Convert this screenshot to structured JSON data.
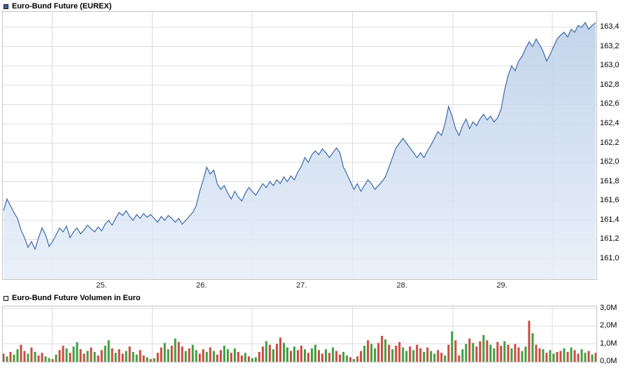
{
  "colors": {
    "price_line": "#3a6aa8",
    "area_top": "#b9cde8",
    "area_bottom": "#e6eef9",
    "grid": "#dcdcdc",
    "plot_border": "#c4c4c4",
    "volume_up": "#3fa03f",
    "volume_down": "#cc4a41",
    "legend_price_swatch": "#3a6aa8",
    "legend_volume_swatch": "#ededed",
    "text": "#000000"
  },
  "chart_data": [
    {
      "type": "area",
      "title": "Euro-Bund Future (EUREX)",
      "legend_position": "top-left",
      "grid": true,
      "x_tick_labels": [
        "25.",
        "26.",
        "27.",
        "28.",
        "29."
      ],
      "day_boundaries": [
        0.083,
        0.252,
        0.42,
        0.589,
        0.758,
        0.926
      ],
      "y_tick_labels": [
        "163,4",
        "163,2",
        "163,0",
        "162,8",
        "162,6",
        "162,4",
        "162,2",
        "162,0",
        "161,8",
        "161,6",
        "161,4",
        "161,2",
        "161,0"
      ],
      "y_tick_values": [
        163.4,
        163.2,
        163.0,
        162.8,
        162.6,
        162.4,
        162.2,
        162.0,
        161.8,
        161.6,
        161.4,
        161.2,
        161.0
      ],
      "y_range": [
        160.79,
        163.56
      ],
      "values": [
        161.5,
        161.62,
        161.55,
        161.48,
        161.42,
        161.3,
        161.22,
        161.12,
        161.18,
        161.1,
        161.22,
        161.32,
        161.25,
        161.13,
        161.18,
        161.25,
        161.32,
        161.28,
        161.34,
        161.22,
        161.28,
        161.32,
        161.26,
        161.3,
        161.35,
        161.31,
        161.28,
        161.33,
        161.29,
        161.36,
        161.4,
        161.35,
        161.42,
        161.48,
        161.45,
        161.5,
        161.44,
        161.4,
        161.46,
        161.42,
        161.47,
        161.43,
        161.46,
        161.42,
        161.38,
        161.44,
        161.4,
        161.45,
        161.42,
        161.38,
        161.42,
        161.36,
        161.4,
        161.44,
        161.48,
        161.55,
        161.7,
        161.82,
        161.95,
        161.88,
        161.92,
        161.78,
        161.72,
        161.76,
        161.68,
        161.62,
        161.7,
        161.64,
        161.6,
        161.68,
        161.74,
        161.7,
        161.66,
        161.72,
        161.78,
        161.74,
        161.8,
        161.76,
        161.82,
        161.78,
        161.85,
        161.8,
        161.86,
        161.82,
        161.9,
        161.96,
        162.05,
        162.0,
        162.08,
        162.12,
        162.08,
        162.14,
        162.1,
        162.05,
        162.1,
        162.15,
        162.1,
        161.95,
        161.88,
        161.8,
        161.72,
        161.78,
        161.7,
        161.76,
        161.82,
        161.78,
        161.72,
        161.76,
        161.8,
        161.85,
        161.95,
        162.05,
        162.15,
        162.2,
        162.25,
        162.2,
        162.15,
        162.1,
        162.05,
        162.1,
        162.05,
        162.12,
        162.18,
        162.25,
        162.32,
        162.28,
        162.4,
        162.58,
        162.48,
        162.35,
        162.28,
        162.38,
        162.45,
        162.35,
        162.42,
        162.38,
        162.45,
        162.5,
        162.44,
        162.48,
        162.42,
        162.46,
        162.55,
        162.75,
        162.9,
        163.0,
        162.95,
        163.05,
        163.1,
        163.18,
        163.25,
        163.2,
        163.28,
        163.22,
        163.15,
        163.05,
        163.12,
        163.2,
        163.28,
        163.32,
        163.35,
        163.3,
        163.38,
        163.35,
        163.42,
        163.4,
        163.45,
        163.38,
        163.42,
        163.45
      ]
    },
    {
      "type": "bar",
      "title": "Euro-Bund Future Volumen in Euro",
      "legend_position": "top-left",
      "grid": true,
      "y_tick_labels": [
        "3,0M",
        "2,0M",
        "1,0M",
        "0,0M"
      ],
      "y_tick_values": [
        3,
        2,
        1,
        0
      ],
      "y_range": [
        0,
        3.1
      ],
      "values_millions": [
        0.45,
        0.3,
        0.55,
        0.4,
        0.7,
        0.95,
        0.6,
        0.45,
        0.8,
        0.55,
        0.35,
        0.5,
        0.3,
        0.2,
        0.15,
        0.4,
        0.65,
        0.9,
        0.75,
        0.5,
        0.85,
        1.1,
        0.7,
        0.45,
        0.6,
        0.8,
        0.55,
        0.35,
        0.65,
        0.9,
        1.2,
        0.75,
        0.5,
        0.7,
        0.45,
        0.6,
        0.85,
        0.55,
        0.4,
        0.65,
        0.35,
        0.25,
        0.15,
        0.2,
        0.5,
        0.8,
        1.05,
        0.7,
        0.9,
        1.3,
        1.1,
        0.85,
        0.6,
        0.75,
        0.95,
        0.65,
        0.45,
        0.7,
        0.55,
        0.8,
        0.6,
        0.4,
        0.65,
        0.9,
        0.7,
        0.5,
        0.75,
        0.55,
        0.35,
        0.5,
        0.3,
        0.2,
        0.25,
        0.55,
        0.85,
        1.15,
        0.95,
        0.7,
        1.0,
        1.35,
        1.05,
        0.8,
        0.6,
        0.85,
        0.65,
        0.9,
        0.7,
        0.5,
        0.75,
        0.95,
        0.65,
        0.45,
        0.7,
        0.5,
        0.8,
        0.6,
        0.4,
        0.55,
        0.35,
        0.25,
        0.15,
        0.3,
        0.6,
        0.9,
        1.2,
        1.0,
        0.75,
        1.05,
        1.45,
        1.25,
        0.95,
        0.7,
        0.9,
        1.1,
        0.8,
        0.6,
        0.85,
        0.65,
        0.95,
        0.75,
        0.55,
        0.8,
        0.6,
        0.45,
        0.65,
        0.5,
        0.35,
        0.95,
        1.7,
        1.2,
        0.35,
        0.7,
        1.0,
        1.3,
        1.05,
        0.85,
        1.15,
        1.5,
        1.2,
        0.95,
        0.75,
        1.1,
        0.9,
        1.15,
        0.95,
        0.75,
        1.0,
        0.8,
        0.6,
        0.85,
        2.3,
        1.6,
        0.95,
        0.75,
        0.7,
        0.5,
        0.65,
        0.45,
        0.55,
        0.6,
        0.75,
        0.55,
        0.8,
        0.65,
        0.45,
        0.7,
        0.5,
        0.6,
        0.4,
        0.5
      ],
      "bar_colors": "rgrggrrgrgrrggrgrrgrggrrgrgrrggrgrrgrggrrgrgrrggrgrrgrggrrgrgrrggrgrrgrggrrgrgrrggrgrrgrggrrgrgrrggrgrrgrggrrgrgrrggrgrrgrggrrgrgrrggrgrrgrggrrgrgrrggrgrrgrggrrgrgrrggrgr"
    }
  ]
}
